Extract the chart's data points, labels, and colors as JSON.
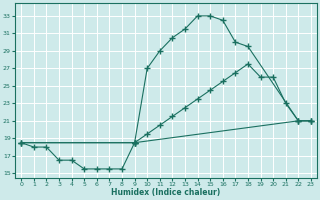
{
  "xlabel": "Humidex (Indice chaleur)",
  "bg_color": "#ceeaea",
  "grid_color": "#ffffff",
  "line_color": "#1a7060",
  "xlim": [
    -0.5,
    23.5
  ],
  "ylim": [
    14.5,
    34.5
  ],
  "xticks": [
    0,
    1,
    2,
    3,
    4,
    5,
    6,
    7,
    8,
    9,
    10,
    11,
    12,
    13,
    14,
    15,
    16,
    17,
    18,
    19,
    20,
    21,
    22,
    23
  ],
  "yticks": [
    15,
    17,
    19,
    21,
    23,
    25,
    27,
    29,
    31,
    33
  ],
  "line1_x": [
    0,
    1,
    2,
    3,
    4,
    5,
    6,
    7,
    8,
    9,
    22,
    23
  ],
  "line1_y": [
    18.5,
    18.0,
    18.0,
    16.5,
    16.5,
    15.5,
    15.5,
    15.5,
    15.5,
    18.5,
    21.0,
    21.0
  ],
  "line2_x": [
    0,
    9,
    10,
    11,
    12,
    13,
    14,
    15,
    16,
    17,
    18,
    19,
    20,
    21,
    22,
    23
  ],
  "line2_y": [
    18.5,
    18.5,
    19.5,
    20.5,
    21.5,
    22.5,
    23.5,
    24.5,
    25.5,
    26.5,
    27.5,
    26.0,
    26.0,
    23.0,
    21.0,
    21.0
  ],
  "line3_x": [
    0,
    9,
    10,
    11,
    12,
    13,
    14,
    15,
    16,
    17,
    18,
    22,
    23
  ],
  "line3_y": [
    18.5,
    18.5,
    27.0,
    29.0,
    30.5,
    31.5,
    33.0,
    33.0,
    32.5,
    30.0,
    29.5,
    21.0,
    21.0
  ]
}
